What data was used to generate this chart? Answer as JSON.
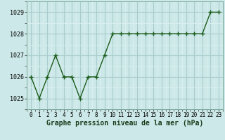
{
  "x": [
    0,
    1,
    2,
    3,
    4,
    5,
    6,
    7,
    8,
    9,
    10,
    11,
    12,
    13,
    14,
    15,
    16,
    17,
    18,
    19,
    20,
    21,
    22,
    23
  ],
  "y": [
    1026,
    1025,
    1026,
    1027,
    1026,
    1026,
    1025,
    1026,
    1026,
    1027,
    1028,
    1028,
    1028,
    1028,
    1028,
    1028,
    1028,
    1028,
    1028,
    1028,
    1028,
    1028,
    1029,
    1029
  ],
  "line_color": "#1a5c1a",
  "marker": "+",
  "marker_color": "#1a5c1a",
  "bg_color": "#cce8e8",
  "grid_major_color": "#aacccc",
  "grid_minor_color": "#ddf0f0",
  "xlabel": "Graphe pression niveau de la mer (hPa)",
  "xlabel_fontsize": 7.0,
  "ylabel_ticks": [
    1025,
    1026,
    1027,
    1028,
    1029
  ],
  "xlim": [
    -0.5,
    23.5
  ],
  "ylim": [
    1024.5,
    1029.5
  ],
  "tick_labels": [
    "0",
    "1",
    "2",
    "3",
    "4",
    "5",
    "6",
    "7",
    "8",
    "9",
    "10",
    "11",
    "12",
    "13",
    "14",
    "15",
    "16",
    "17",
    "18",
    "19",
    "20",
    "21",
    "22",
    "23"
  ],
  "line_width": 1.0,
  "marker_size": 4,
  "tick_fontsize": 5.5,
  "ytick_fontsize": 6.0
}
